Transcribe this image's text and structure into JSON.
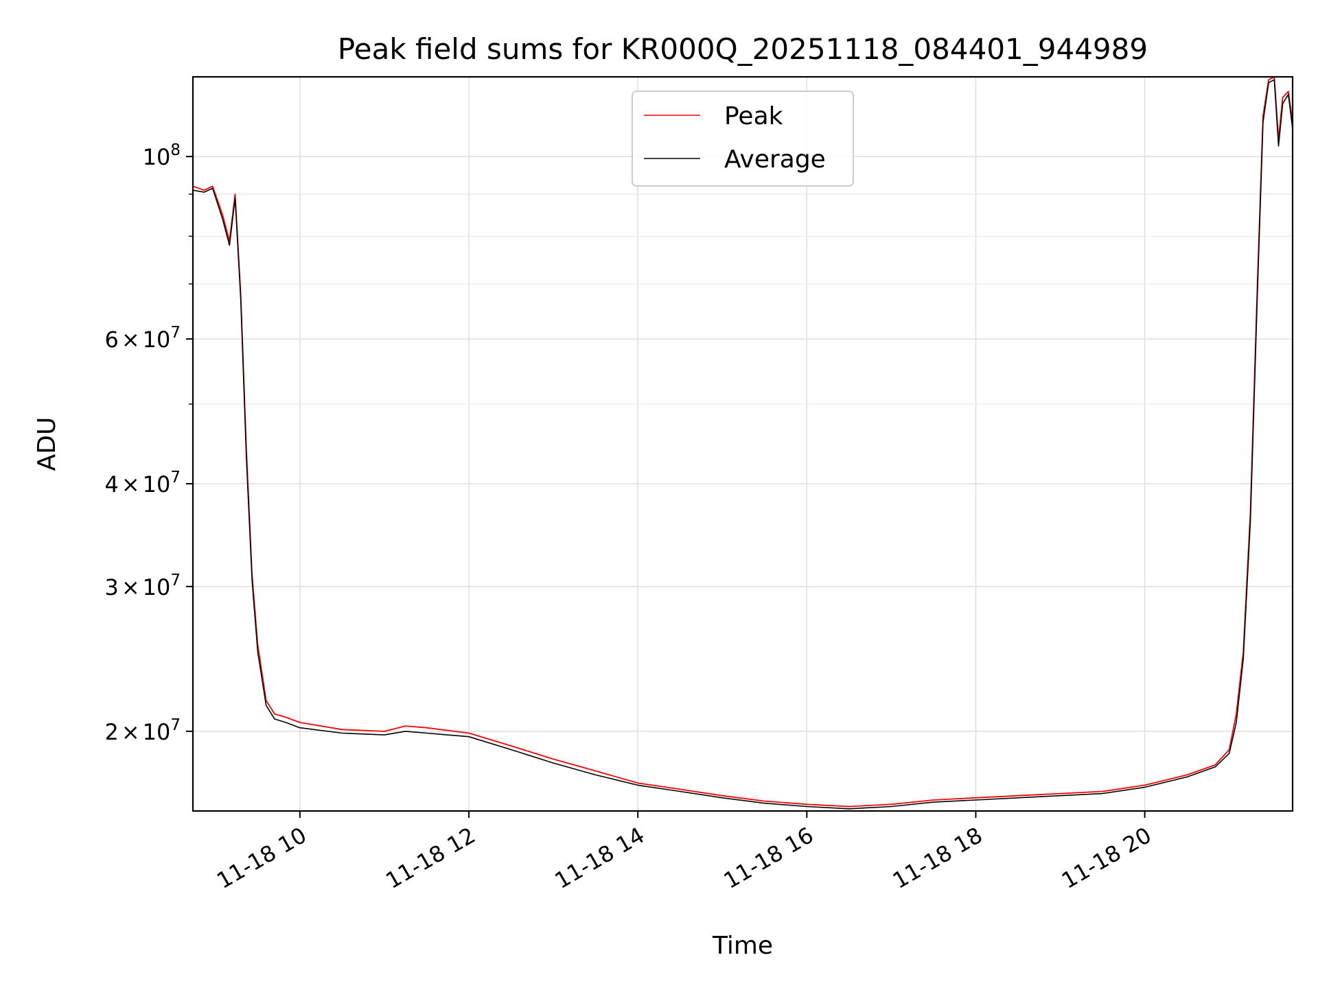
{
  "chart_data": {
    "type": "line",
    "title": "Peak field sums for KR000Q_20251118_084401_944989",
    "xlabel": "Time",
    "ylabel": "ADU",
    "yscale": "log",
    "ylim": [
      16000000,
      125000000
    ],
    "xlim": [
      "2025-11-18 08:44",
      "2025-11-18 21:45"
    ],
    "grid": true,
    "legend": {
      "placement": "upper center"
    },
    "x_ticks": [
      "11-18 10",
      "11-18 12",
      "11-18 14",
      "11-18 16",
      "11-18 18",
      "11-18 20"
    ],
    "y_ticks_major": [
      {
        "base": "10",
        "exp": "8",
        "mant": ""
      },
      {
        "base": "10",
        "exp": "7",
        "mant": "6"
      },
      {
        "base": "10",
        "exp": "7",
        "mant": "4"
      },
      {
        "base": "10",
        "exp": "7",
        "mant": "3"
      },
      {
        "base": "10",
        "exp": "7",
        "mant": "2"
      }
    ],
    "series": [
      {
        "name": "Peak",
        "color": "#ff0000",
        "x": [
          "2025-11-18 08:44",
          "2025-11-18 08:52",
          "2025-11-18 08:58",
          "2025-11-18 09:05",
          "2025-11-18 09:10",
          "2025-11-18 09:14",
          "2025-11-18 09:18",
          "2025-11-18 09:22",
          "2025-11-18 09:26",
          "2025-11-18 09:30",
          "2025-11-18 09:36",
          "2025-11-18 09:42",
          "2025-11-18 09:50",
          "2025-11-18 10:00",
          "2025-11-18 10:30",
          "2025-11-18 11:00",
          "2025-11-18 11:15",
          "2025-11-18 11:30",
          "2025-11-18 12:00",
          "2025-11-18 12:30",
          "2025-11-18 13:00",
          "2025-11-18 13:30",
          "2025-11-18 14:00",
          "2025-11-18 14:30",
          "2025-11-18 15:00",
          "2025-11-18 15:30",
          "2025-11-18 16:00",
          "2025-11-18 16:30",
          "2025-11-18 17:00",
          "2025-11-18 17:30",
          "2025-11-18 18:00",
          "2025-11-18 18:30",
          "2025-11-18 19:00",
          "2025-11-18 19:30",
          "2025-11-18 20:00",
          "2025-11-18 20:30",
          "2025-11-18 20:50",
          "2025-11-18 21:00",
          "2025-11-18 21:05",
          "2025-11-18 21:10",
          "2025-11-18 21:15",
          "2025-11-18 21:20",
          "2025-11-18 21:24",
          "2025-11-18 21:28",
          "2025-11-18 21:32",
          "2025-11-18 21:35",
          "2025-11-18 21:38",
          "2025-11-18 21:42",
          "2025-11-18 21:45"
        ],
        "values": [
          92000000,
          91000000,
          92000000,
          85000000,
          79000000,
          90000000,
          68000000,
          44000000,
          31000000,
          25500000,
          21800000,
          21000000,
          20800000,
          20500000,
          20100000,
          20000000,
          20300000,
          20200000,
          19900000,
          19200000,
          18500000,
          17900000,
          17300000,
          17000000,
          16700000,
          16450000,
          16300000,
          16200000,
          16300000,
          16500000,
          16600000,
          16700000,
          16800000,
          16900000,
          17200000,
          17700000,
          18200000,
          19000000,
          21000000,
          25000000,
          37000000,
          70000000,
          112000000,
          124000000,
          125000000,
          105000000,
          118000000,
          120000000,
          110000000
        ]
      },
      {
        "name": "Average",
        "color": "#000000",
        "x": [
          "2025-11-18 08:44",
          "2025-11-18 08:52",
          "2025-11-18 08:58",
          "2025-11-18 09:05",
          "2025-11-18 09:10",
          "2025-11-18 09:14",
          "2025-11-18 09:18",
          "2025-11-18 09:22",
          "2025-11-18 09:26",
          "2025-11-18 09:30",
          "2025-11-18 09:36",
          "2025-11-18 09:42",
          "2025-11-18 09:50",
          "2025-11-18 10:00",
          "2025-11-18 10:30",
          "2025-11-18 11:00",
          "2025-11-18 11:15",
          "2025-11-18 11:30",
          "2025-11-18 12:00",
          "2025-11-18 12:30",
          "2025-11-18 13:00",
          "2025-11-18 13:30",
          "2025-11-18 14:00",
          "2025-11-18 14:30",
          "2025-11-18 15:00",
          "2025-11-18 15:30",
          "2025-11-18 16:00",
          "2025-11-18 16:30",
          "2025-11-18 17:00",
          "2025-11-18 17:30",
          "2025-11-18 18:00",
          "2025-11-18 18:30",
          "2025-11-18 19:00",
          "2025-11-18 19:30",
          "2025-11-18 20:00",
          "2025-11-18 20:30",
          "2025-11-18 20:50",
          "2025-11-18 21:00",
          "2025-11-18 21:05",
          "2025-11-18 21:10",
          "2025-11-18 21:15",
          "2025-11-18 21:20",
          "2025-11-18 21:24",
          "2025-11-18 21:28",
          "2025-11-18 21:32",
          "2025-11-18 21:35",
          "2025-11-18 21:38",
          "2025-11-18 21:42",
          "2025-11-18 21:45"
        ],
        "values": [
          91000000,
          90500000,
          91500000,
          84000000,
          78000000,
          89000000,
          67000000,
          43000000,
          30500000,
          25000000,
          21500000,
          20700000,
          20500000,
          20200000,
          19900000,
          19800000,
          20000000,
          19900000,
          19700000,
          19000000,
          18300000,
          17700000,
          17200000,
          16900000,
          16600000,
          16350000,
          16200000,
          16100000,
          16200000,
          16400000,
          16500000,
          16600000,
          16700000,
          16800000,
          17100000,
          17600000,
          18100000,
          18800000,
          20500000,
          24500000,
          36000000,
          68000000,
          110000000,
          123000000,
          124000000,
          103000000,
          116000000,
          119000000,
          108000000
        ]
      }
    ]
  }
}
